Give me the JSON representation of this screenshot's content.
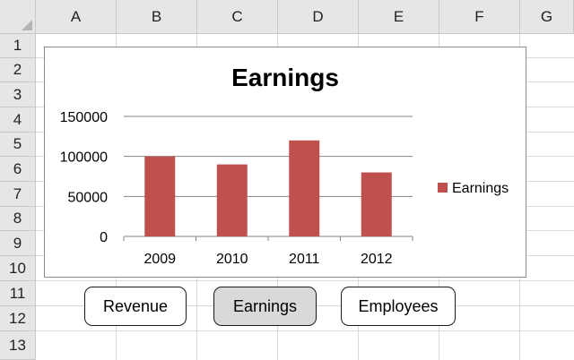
{
  "spreadsheet": {
    "columns": [
      "A",
      "B",
      "C",
      "D",
      "E",
      "F",
      "G"
    ],
    "rows": [
      "1",
      "2",
      "3",
      "4",
      "5",
      "6",
      "7",
      "8",
      "9",
      "10",
      "11",
      "12",
      "13"
    ]
  },
  "buttons": {
    "revenue": "Revenue",
    "earnings": "Earnings",
    "employees": "Employees",
    "active": "earnings"
  },
  "chart_data": {
    "type": "bar",
    "title": "Earnings",
    "categories": [
      "2009",
      "2010",
      "2011",
      "2012"
    ],
    "series": [
      {
        "name": "Earnings",
        "values": [
          100000,
          90000,
          120000,
          80000
        ],
        "color": "#c0504d"
      }
    ],
    "ylim": [
      0,
      150000
    ],
    "yticks": [
      "0",
      "50000",
      "100000",
      "150000"
    ],
    "grid": true,
    "legend": "right"
  }
}
